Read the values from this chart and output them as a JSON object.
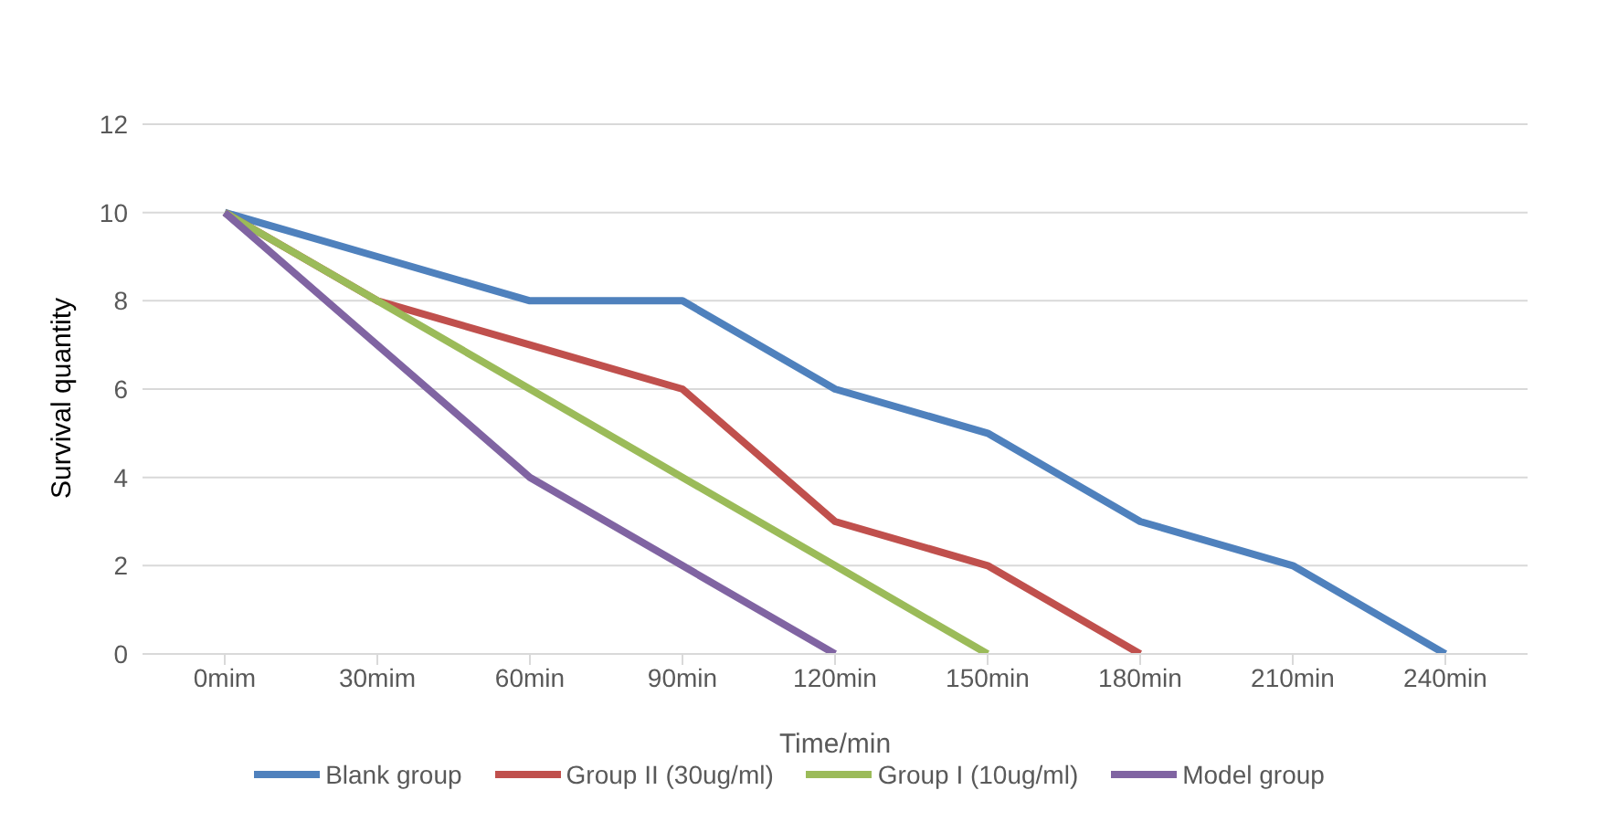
{
  "chart_data": {
    "type": "line",
    "xlabel": "Time/min",
    "ylabel": "Survival quantity",
    "categories": [
      "0mim",
      "30mim",
      "60min",
      "90min",
      "120min",
      "150min",
      "180min",
      "210min",
      "240min"
    ],
    "series": [
      {
        "name": "Blank group",
        "color": "#4f81bd",
        "values": [
          10,
          9,
          8,
          8,
          6,
          5,
          3,
          2,
          0
        ]
      },
      {
        "name": "Group II (30ug/ml)",
        "color": "#c0504d",
        "values": [
          10,
          8,
          7,
          6,
          3,
          2,
          0,
          null,
          null
        ]
      },
      {
        "name": "Group I (10ug/ml)",
        "color": "#9bbb59",
        "values": [
          10,
          8,
          6,
          4,
          2,
          0,
          null,
          null,
          null
        ]
      },
      {
        "name": "Model group",
        "color": "#8064a2",
        "values": [
          10,
          7,
          4,
          2,
          0,
          null,
          null,
          null,
          null
        ]
      }
    ],
    "ylim": [
      0,
      12
    ],
    "yticks": [
      0,
      2,
      4,
      6,
      8,
      10,
      12
    ],
    "grid": "y",
    "legend": "bottom",
    "marker": "none",
    "line_style": "solid"
  }
}
